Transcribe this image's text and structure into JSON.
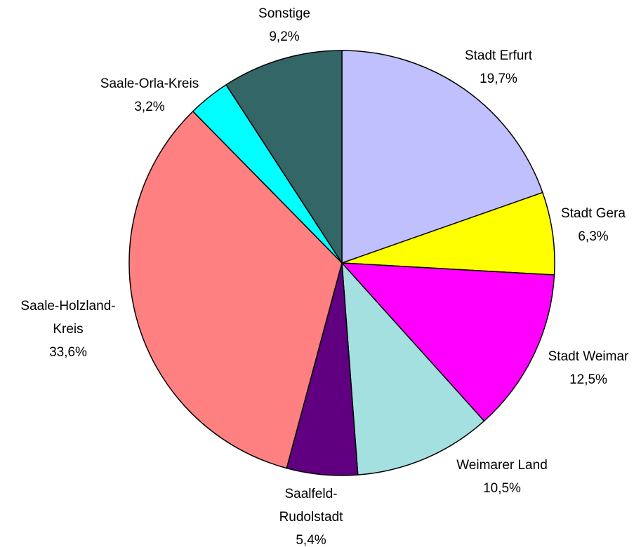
{
  "chart_data": {
    "type": "pie",
    "categories": [
      "Stadt Erfurt",
      "Stadt Gera",
      "Stadt Weimar",
      "Weimarer Land",
      "Saalfeld-Rudolstadt",
      "Saale-Holzland-Kreis",
      "Saale-Orla-Kreis",
      "Sonstige"
    ],
    "values": [
      19.7,
      6.3,
      12.5,
      10.5,
      5.4,
      33.6,
      3.2,
      9.2
    ],
    "value_labels": [
      "19,7%",
      "6,3%",
      "12,5%",
      "10,5%",
      "5,4%",
      "33,6%",
      "3,2%",
      "9,2%"
    ],
    "colors": [
      "#c0c0ff",
      "#ffff00",
      "#ff00ff",
      "#a4e0e0",
      "#600080",
      "#ff8080",
      "#00ffff",
      "#336666"
    ]
  }
}
